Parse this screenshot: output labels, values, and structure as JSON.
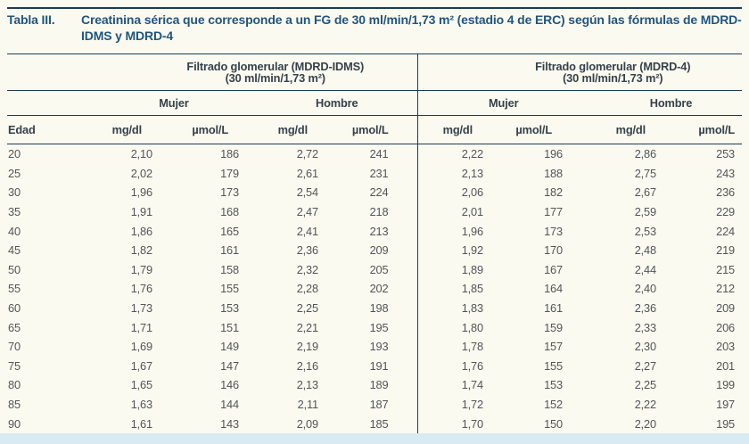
{
  "title": {
    "label": "Tabla III.",
    "text": "Creatinina sérica que corresponde a un FG de 30 ml/min/1,73 m² (estadio 4 de ERC) según las fórmulas de MDRD-IDMS y MDRD-4"
  },
  "colors": {
    "title_blue": "#1f5580",
    "rule_navy": "#1b3c55",
    "page_background": "#fbfaf0",
    "bottom_strip_blue": "#d8ebf3",
    "header_text": "#35414b",
    "data_text": "#52555a"
  },
  "table": {
    "group_headers": [
      {
        "line1": "Filtrado glomerular (MDRD-IDMS)",
        "line2": "(30 ml/min/1,73 m²)"
      },
      {
        "line1": "Filtrado glomerular (MDRD-4)",
        "line2": "(30 ml/min/1,73 m²)"
      }
    ],
    "sex_headers": [
      "Mujer",
      "Hombre",
      "Mujer",
      "Hombre"
    ],
    "column_headers": [
      "Edad",
      "mg/dl",
      "µmol/L",
      "mg/dl",
      "µmol/L",
      "mg/dl",
      "µmol/L",
      "mg/dl",
      "µmol/L"
    ],
    "rows": [
      [
        "20",
        "2,10",
        "186",
        "2,72",
        "241",
        "2,22",
        "196",
        "2,86",
        "253"
      ],
      [
        "25",
        "2,02",
        "179",
        "2,61",
        "231",
        "2,13",
        "188",
        "2,75",
        "243"
      ],
      [
        "30",
        "1,96",
        "173",
        "2,54",
        "224",
        "2,06",
        "182",
        "2,67",
        "236"
      ],
      [
        "35",
        "1,91",
        "168",
        "2,47",
        "218",
        "2,01",
        "177",
        "2,59",
        "229"
      ],
      [
        "40",
        "1,86",
        "165",
        "2,41",
        "213",
        "1,96",
        "173",
        "2,53",
        "224"
      ],
      [
        "45",
        "1,82",
        "161",
        "2,36",
        "209",
        "1,92",
        "170",
        "2,48",
        "219"
      ],
      [
        "50",
        "1,79",
        "158",
        "2,32",
        "205",
        "1,89",
        "167",
        "2,44",
        "215"
      ],
      [
        "55",
        "1,76",
        "155",
        "2,28",
        "202",
        "1,85",
        "164",
        "2,40",
        "212"
      ],
      [
        "60",
        "1,73",
        "153",
        "2,25",
        "198",
        "1,83",
        "161",
        "2,36",
        "209"
      ],
      [
        "65",
        "1,71",
        "151",
        "2,21",
        "195",
        "1,80",
        "159",
        "2,33",
        "206"
      ],
      [
        "70",
        "1,69",
        "149",
        "2,19",
        "193",
        "1,78",
        "157",
        "2,30",
        "203"
      ],
      [
        "75",
        "1,67",
        "147",
        "2,16",
        "191",
        "1,76",
        "155",
        "2,27",
        "201"
      ],
      [
        "80",
        "1,65",
        "146",
        "2,13",
        "189",
        "1,74",
        "153",
        "2,25",
        "199"
      ],
      [
        "85",
        "1,63",
        "144",
        "2,11",
        "187",
        "1,72",
        "152",
        "2,22",
        "197"
      ],
      [
        "90",
        "1,61",
        "143",
        "2,09",
        "185",
        "1,70",
        "150",
        "2,20",
        "195"
      ]
    ]
  }
}
